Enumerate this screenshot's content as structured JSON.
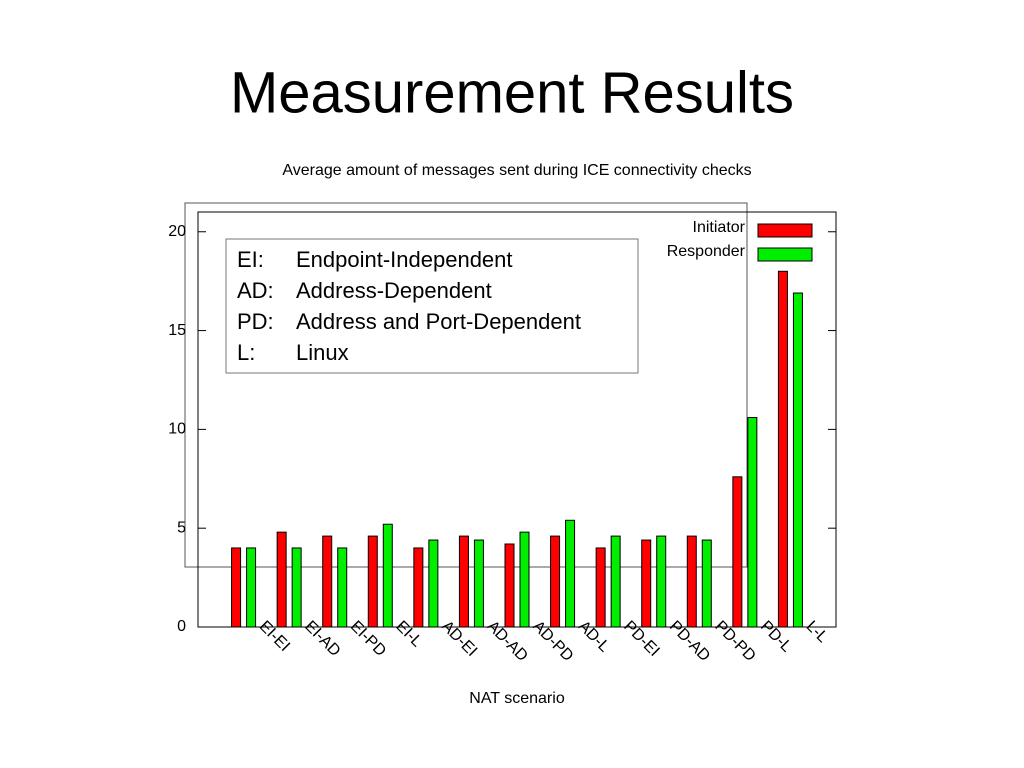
{
  "slide_title": "Measurement Results",
  "abbreviations": [
    [
      "EI:",
      "Endpoint-Independent"
    ],
    [
      "AD:",
      "Address-Dependent"
    ],
    [
      "PD:",
      "Address and Port-Dependent"
    ],
    [
      "L:",
      "Linux"
    ]
  ],
  "chart_data": {
    "type": "bar",
    "title": "Average amount of messages sent during ICE connectivity checks",
    "x_label": "NAT scenario",
    "categories": [
      "EI-EI",
      "EI-AD",
      "EI-PD",
      "EI-L",
      "AD-EI",
      "AD-AD",
      "AD-PD",
      "AD-L",
      "PD-EI",
      "PD-AD",
      "PD-PD",
      "PD-L",
      "L-L"
    ],
    "series": [
      {
        "name": "Initiator",
        "color": "#ff0000",
        "values": [
          4.0,
          4.8,
          4.6,
          4.6,
          4.0,
          4.6,
          4.2,
          4.6,
          4.0,
          4.4,
          4.6,
          7.6,
          18.0
        ]
      },
      {
        "name": "Responder",
        "color": "#00ee00",
        "values": [
          4.0,
          4.0,
          4.0,
          5.2,
          4.4,
          4.4,
          4.8,
          5.4,
          4.6,
          4.6,
          4.4,
          10.6,
          16.9
        ]
      }
    ],
    "ylim": [
      0,
      21
    ],
    "yticks": [
      0,
      5,
      10,
      15,
      20
    ],
    "legend": "top-right",
    "grid": false
  }
}
